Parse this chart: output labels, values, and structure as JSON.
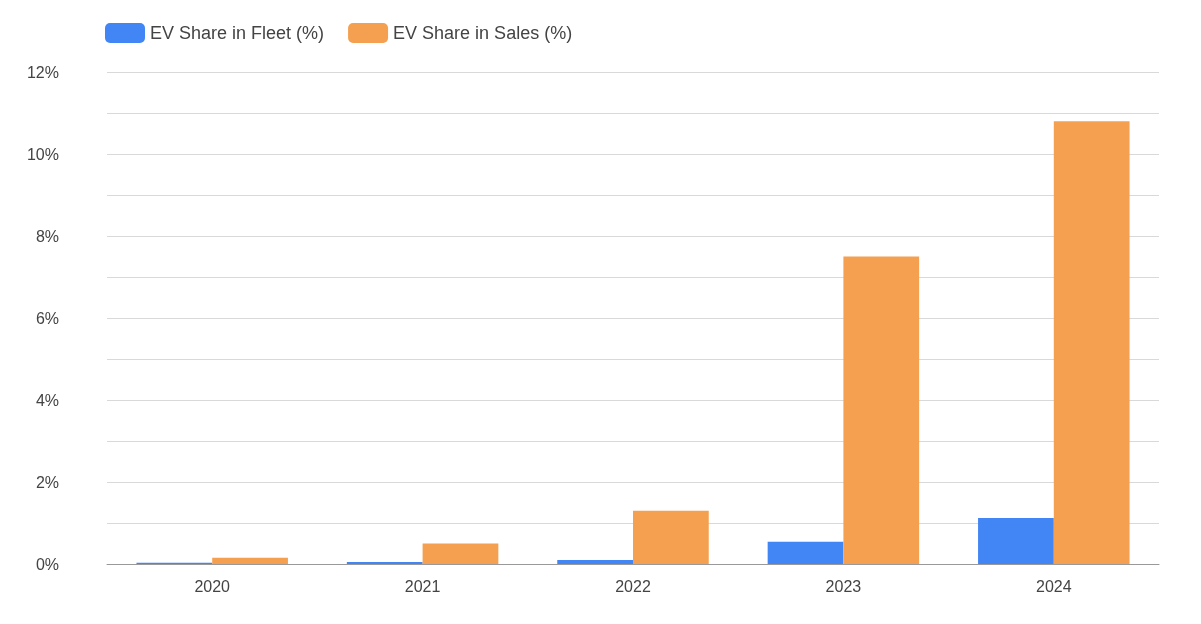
{
  "chart_data": {
    "type": "bar",
    "categories": [
      "2020",
      "2021",
      "2022",
      "2023",
      "2024"
    ],
    "series": [
      {
        "name": "EV Share in Fleet (%)",
        "color": "#4285f4",
        "values": [
          0.03,
          0.05,
          0.1,
          0.54,
          1.12
        ]
      },
      {
        "name": "EV Share in Sales (%)",
        "color": "#f4a050",
        "values": [
          0.15,
          0.5,
          1.3,
          7.5,
          10.8
        ]
      }
    ],
    "ylim": [
      0,
      12
    ],
    "yticks": [
      {
        "value": 0,
        "label": "0%"
      },
      {
        "value": 1,
        "label": null
      },
      {
        "value": 2,
        "label": "2%"
      },
      {
        "value": 3,
        "label": null
      },
      {
        "value": 4,
        "label": "4%"
      },
      {
        "value": 5,
        "label": null
      },
      {
        "value": 6,
        "label": "6%"
      },
      {
        "value": 7,
        "label": null
      },
      {
        "value": 8,
        "label": "8%"
      },
      {
        "value": 9,
        "label": null
      },
      {
        "value": 10,
        "label": "10%"
      },
      {
        "value": 11,
        "label": null
      },
      {
        "value": 12,
        "label": "12%"
      }
    ],
    "grid": "y",
    "legend": "top left"
  }
}
